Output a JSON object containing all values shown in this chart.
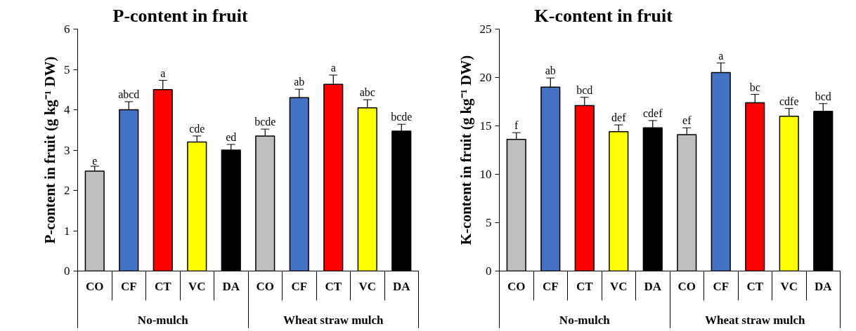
{
  "chart_data": [
    {
      "type": "bar",
      "title": "P-content in fruit",
      "ylabel": "P-content in fruit (g kg⁻¹ DW)",
      "categories": [
        "CO",
        "CF",
        "CT",
        "VC",
        "DA",
        "CO",
        "CF",
        "CT",
        "VC",
        "DA"
      ],
      "values": [
        2.48,
        4.0,
        4.5,
        3.2,
        3.0,
        3.35,
        4.3,
        4.63,
        4.05,
        3.47
      ],
      "errors": [
        0.12,
        0.2,
        0.23,
        0.15,
        0.14,
        0.17,
        0.21,
        0.23,
        0.2,
        0.17
      ],
      "value_labels": [
        "e",
        "abcd",
        "a",
        "cde",
        "ed",
        "bcde",
        "ab",
        "a",
        "abc",
        "bcde"
      ],
      "colors": [
        "#bfbfbf",
        "#4472c4",
        "#ff0000",
        "#ffff00",
        "#000000",
        "#bfbfbf",
        "#4472c4",
        "#ff0000",
        "#ffff00",
        "#000000"
      ],
      "ylim": [
        0,
        6
      ],
      "yticks": [
        0,
        1,
        2,
        3,
        4,
        5,
        6
      ],
      "grid": false,
      "annotations": [
        "No-mulch",
        "Wheat straw mulch"
      ]
    },
    {
      "type": "bar",
      "title": "K-content in fruit",
      "ylabel": "K-content in fruit (g kg⁻¹ DW)",
      "categories": [
        "CO",
        "CF",
        "CT",
        "VC",
        "DA",
        "CO",
        "CF",
        "CT",
        "VC",
        "DA"
      ],
      "values": [
        13.6,
        19.0,
        17.1,
        14.4,
        14.8,
        14.1,
        20.5,
        17.4,
        16.0,
        16.5
      ],
      "errors": [
        0.7,
        0.95,
        0.85,
        0.7,
        0.75,
        0.7,
        1.0,
        0.85,
        0.8,
        0.8
      ],
      "value_labels": [
        "f",
        "ab",
        "bcd",
        "def",
        "cdef",
        "ef",
        "a",
        "bc",
        "cdfe",
        "bcd"
      ],
      "colors": [
        "#bfbfbf",
        "#4472c4",
        "#ff0000",
        "#ffff00",
        "#000000",
        "#bfbfbf",
        "#4472c4",
        "#ff0000",
        "#ffff00",
        "#000000"
      ],
      "ylim": [
        0,
        25
      ],
      "yticks": [
        0,
        5,
        10,
        15,
        20,
        25
      ],
      "grid": false,
      "annotations": [
        "No-mulch",
        "Wheat straw mulch"
      ]
    }
  ]
}
